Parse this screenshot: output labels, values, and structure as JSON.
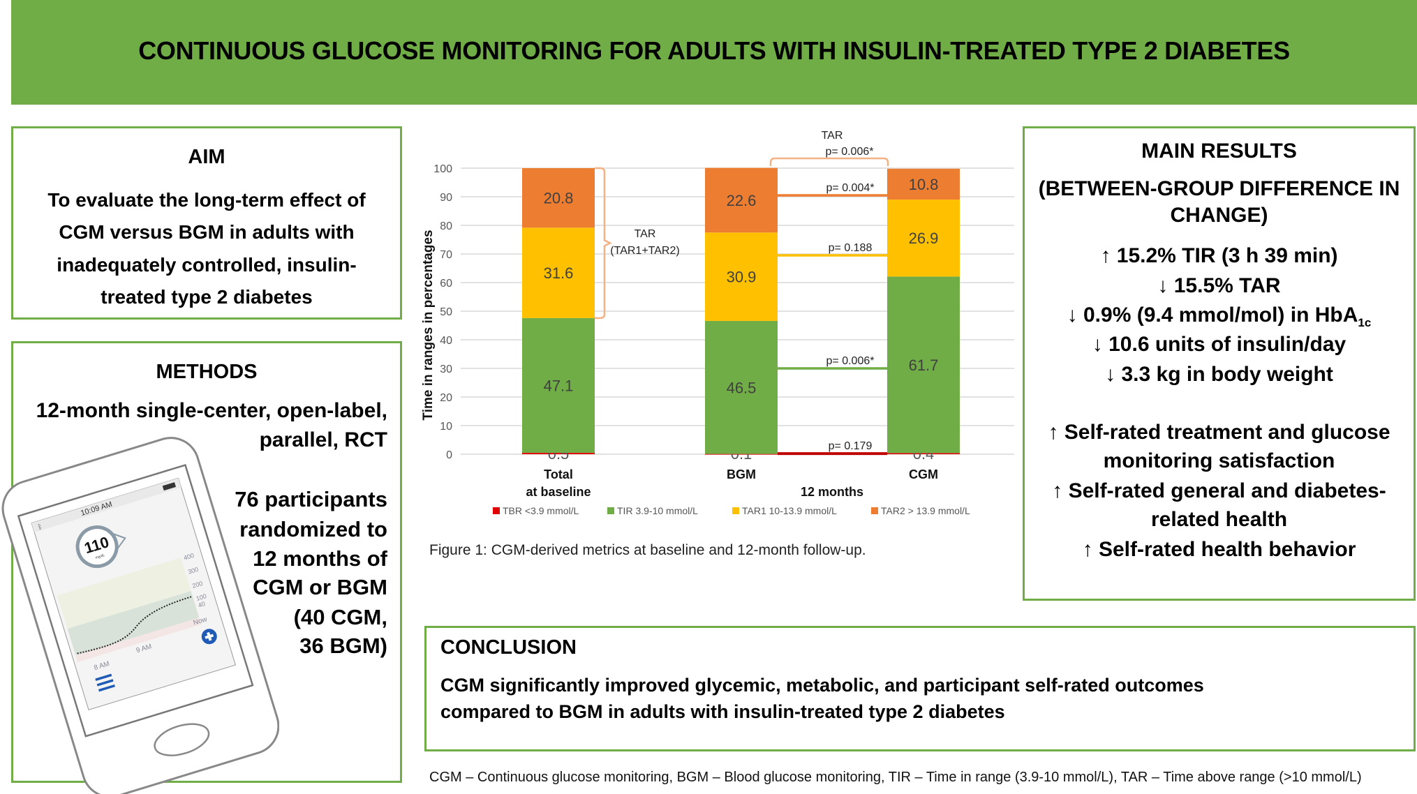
{
  "header": {
    "title": "CONTINUOUS GLUCOSE MONITORING FOR ADULTS WITH INSULIN-TREATED TYPE 2 DIABETES"
  },
  "aim": {
    "title": "AIM",
    "lines": [
      "To evaluate the long-term effect of",
      "CGM versus BGM in adults with",
      "inadequately controlled, insulin-",
      "treated type 2 diabetes"
    ]
  },
  "methods": {
    "title": "METHODS",
    "design_lines": [
      "12-month single-center, open-label,",
      "parallel, RCT"
    ],
    "participants_lines": [
      "76 participants",
      "randomized to",
      "12 months of",
      "CGM or BGM",
      "(40 CGM,",
      "36 BGM)"
    ]
  },
  "phone": {
    "time": "10:09 AM",
    "glucose_value": "110",
    "glucose_unit": "mg/dL",
    "y_ticks": [
      "400",
      "300",
      "200",
      "100",
      "40"
    ],
    "x_ticks": [
      "8 AM",
      "9 AM",
      "Now"
    ],
    "icons": [
      "bluetooth-icon",
      "battery-icon",
      "menu-icon",
      "add-icon"
    ],
    "accent": "#1f5bb5"
  },
  "chart_data": {
    "type": "bar",
    "stacked": true,
    "ylabel": "Time in ranges in percentages",
    "ylim": [
      0,
      100
    ],
    "yticks": [
      0,
      10,
      20,
      30,
      40,
      50,
      60,
      70,
      80,
      90,
      100
    ],
    "grid": true,
    "legend_position": "bottom",
    "categories": [
      "Total\nat baseline",
      "BGM",
      "CGM"
    ],
    "category_lines": [
      [
        "Total",
        "at baseline"
      ],
      [
        "BGM"
      ],
      [
        "CGM"
      ]
    ],
    "group_label": "12 months",
    "series": [
      {
        "name": "TBR <3.9 mmol/L",
        "color": "#e00000",
        "values": [
          0.5,
          0.1,
          0.4
        ]
      },
      {
        "name": "TIR 3.9-10 mmol/L",
        "color": "#70ad47",
        "values": [
          47.1,
          46.5,
          61.7
        ]
      },
      {
        "name": "TAR1 10-13.9 mmol/L",
        "color": "#ffc000",
        "values": [
          31.6,
          30.9,
          26.9
        ]
      },
      {
        "name": "TAR2 > 13.9 mmol/L",
        "color": "#ed7d31",
        "values": [
          20.8,
          22.6,
          10.8
        ]
      }
    ],
    "annotations": {
      "baseline_bracket": [
        "TAR",
        "(TAR1+TAR2)"
      ],
      "top_bracket": [
        "TAR",
        "p= 0.006*"
      ],
      "comparisons": [
        {
          "series": "TAR2 > 13.9 mmol/L",
          "p": "p= 0.004*"
        },
        {
          "series": "TAR1 10-13.9 mmol/L",
          "p": "p= 0.188"
        },
        {
          "series": "TIR 3.9-10 mmol/L",
          "p": "p= 0.006*"
        },
        {
          "series": "TBR <3.9 mmol/L",
          "p": "p= 0.179"
        }
      ]
    }
  },
  "figure_caption": "Figure 1: CGM-derived metrics at baseline and 12-month follow-up.",
  "results": {
    "title": "MAIN RESULTS",
    "subtitle_lines": [
      "(BETWEEN-GROUP DIFFERENCE IN",
      "CHANGE)"
    ],
    "metrics": [
      {
        "arrow": "↑",
        "text": "15.2% TIR (3 h 39 min)"
      },
      {
        "arrow": "↓",
        "text": "15.5% TAR"
      },
      {
        "arrow": "↓",
        "text": "0.9% (9.4 mmol/mol) in HbA",
        "sub": "1c"
      },
      {
        "arrow": "↓",
        "text": "10.6 units of insulin/day"
      },
      {
        "arrow": "↓",
        "text": "3.3 kg in body weight"
      }
    ],
    "self_rated": [
      {
        "arrow": "↑",
        "lines": [
          "Self-rated treatment and glucose",
          "monitoring satisfaction"
        ]
      },
      {
        "arrow": "↑",
        "lines": [
          "Self-rated general and diabetes-",
          "related health"
        ]
      },
      {
        "arrow": "↑",
        "lines": [
          "Self-rated health behavior"
        ]
      }
    ]
  },
  "conclusion": {
    "title": "CONCLUSION",
    "lines": [
      "CGM significantly improved glycemic, metabolic, and participant self-rated outcomes",
      "compared to BGM in adults with insulin-treated type 2 diabetes"
    ]
  },
  "footer": "CGM – Continuous glucose monitoring, BGM – Blood glucose monitoring, TIR – Time in range (3.9-10 mmol/L), TAR – Time above range (>10 mmol/L)"
}
